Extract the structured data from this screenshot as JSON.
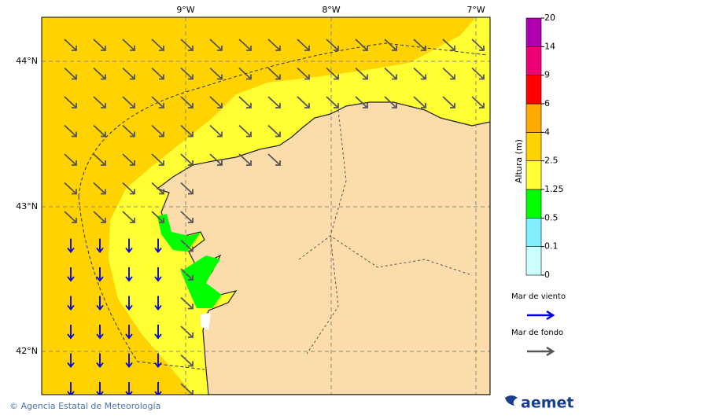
{
  "map": {
    "lon_labels": [
      "9°W",
      "8°W",
      "7°W"
    ],
    "lat_labels": [
      "44°N",
      "43°N",
      "42°N"
    ]
  },
  "colorbar": {
    "title": "Altura (m)",
    "levels": [
      0,
      0.1,
      0.5,
      1.25,
      2.5,
      4,
      6,
      9,
      14,
      20
    ],
    "colors": [
      "#ccffff",
      "#80f0ff",
      "#00ff00",
      "#ffff33",
      "#ffd200",
      "#ffaa00",
      "#ff0000",
      "#ee0077",
      "#b000b0"
    ]
  },
  "legend": {
    "items": [
      {
        "label": "Mar de viento",
        "color": "#0000dd"
      },
      {
        "label": "Mar de fondo",
        "color": "#555555"
      }
    ]
  },
  "footer": {
    "credit": "© Agencia Estatal de Meteorología",
    "logo": "aemet"
  }
}
